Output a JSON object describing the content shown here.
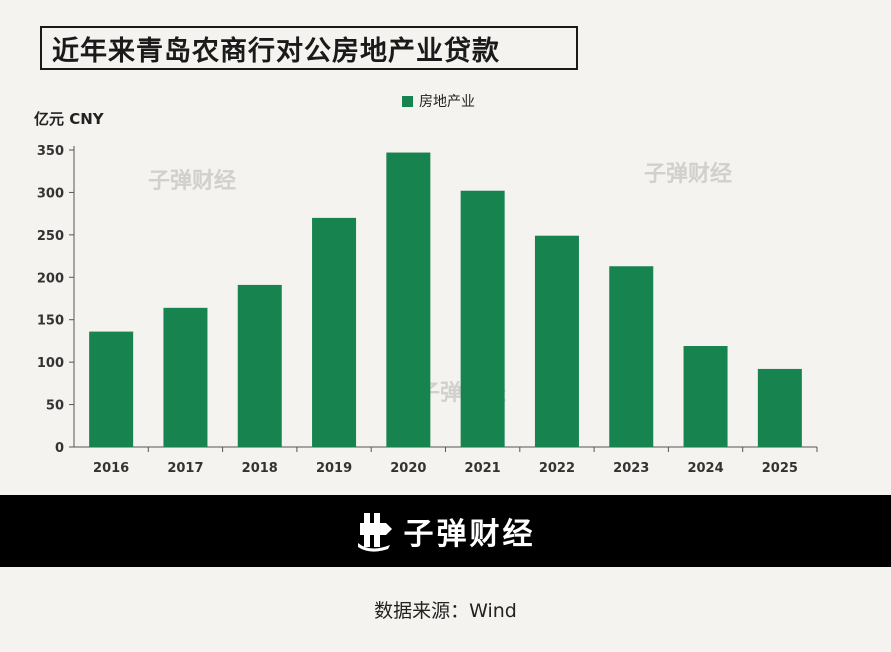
{
  "title": "近年来青岛农商行对公房地产业贷款",
  "watermark": "子弹财经",
  "footer": {
    "brand": "子弹财经",
    "source": "数据来源：Wind"
  },
  "colors": {
    "bar": "#17834f",
    "background": "#f4f3ef",
    "footer_band": "#000000"
  },
  "chart_data": {
    "type": "bar",
    "unit_label": "亿元 CNY",
    "categories": [
      "2016",
      "2017",
      "2018",
      "2019",
      "2020",
      "2021",
      "2022",
      "2023",
      "2024",
      "2025"
    ],
    "series": [
      {
        "name": "房地产业",
        "values": [
          136,
          164,
          191,
          270,
          347,
          302,
          249,
          213,
          119,
          92
        ]
      }
    ],
    "ylim": [
      0,
      350
    ],
    "yticks": [
      0,
      50,
      100,
      150,
      200,
      250,
      300,
      350
    ],
    "legend": "top-center",
    "grid": false
  }
}
